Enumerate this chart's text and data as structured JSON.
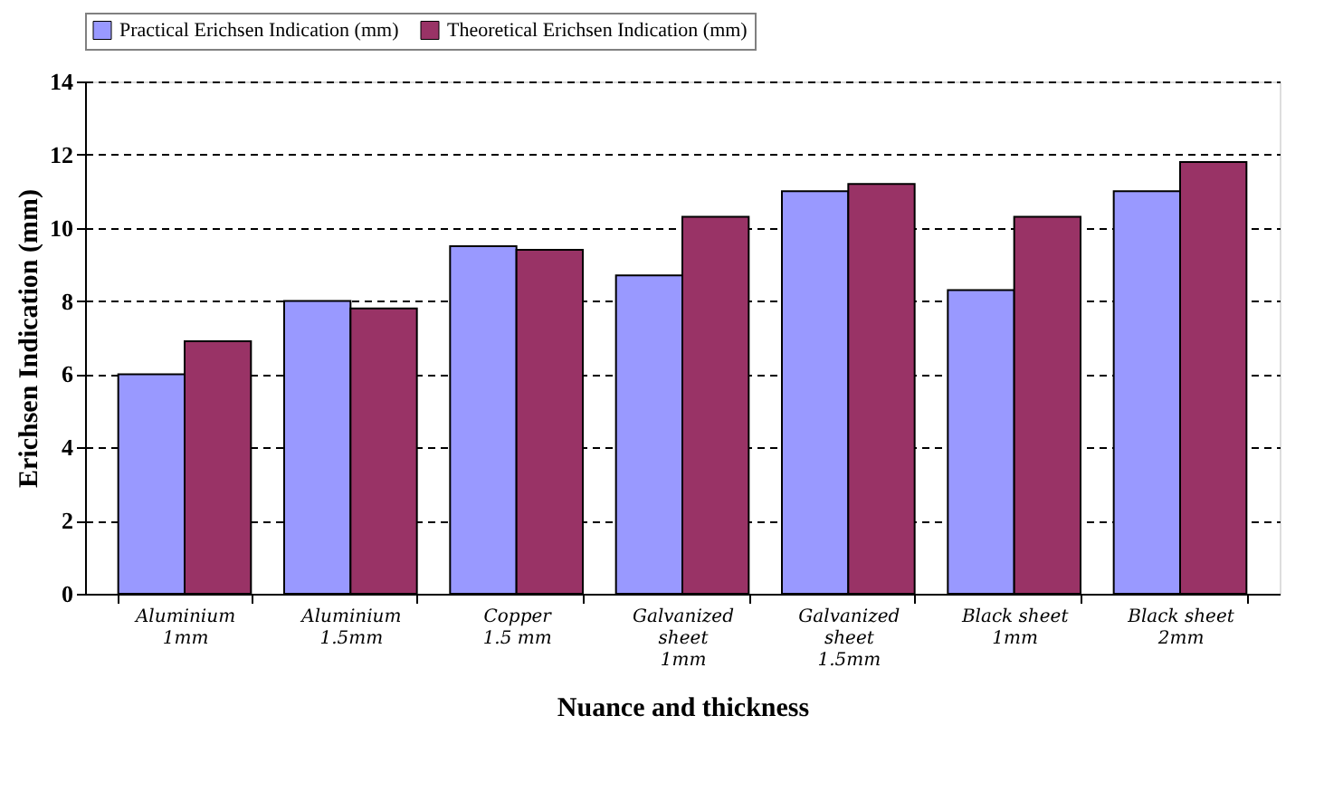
{
  "chart_data": {
    "type": "bar",
    "xlabel": "Nuance and thickness",
    "ylabel": "Erichsen Indication (mm)",
    "categories": [
      "Aluminium\n1mm",
      "Aluminium\n1.5mm",
      "Copper\n1.5 mm",
      "Galvanized\nsheet\n1mm",
      "Galvanized\nsheet\n1.5mm",
      "Black sheet\n1mm",
      "Black sheet\n2mm"
    ],
    "series": [
      {
        "name": "Practical Erichsen Indication (mm)",
        "color": "#9999ff",
        "values": [
          6.0,
          8.0,
          9.5,
          8.7,
          11.0,
          8.3,
          11.0
        ]
      },
      {
        "name": "Theoretical Erichsen Indication (mm)",
        "color": "#993366",
        "values": [
          6.9,
          7.8,
          9.4,
          10.3,
          11.2,
          10.3,
          11.8
        ]
      }
    ],
    "ylim": [
      0,
      14
    ],
    "yticks": [
      0,
      2,
      4,
      6,
      8,
      10,
      12,
      14
    ],
    "grid": "y",
    "legend": "top"
  }
}
